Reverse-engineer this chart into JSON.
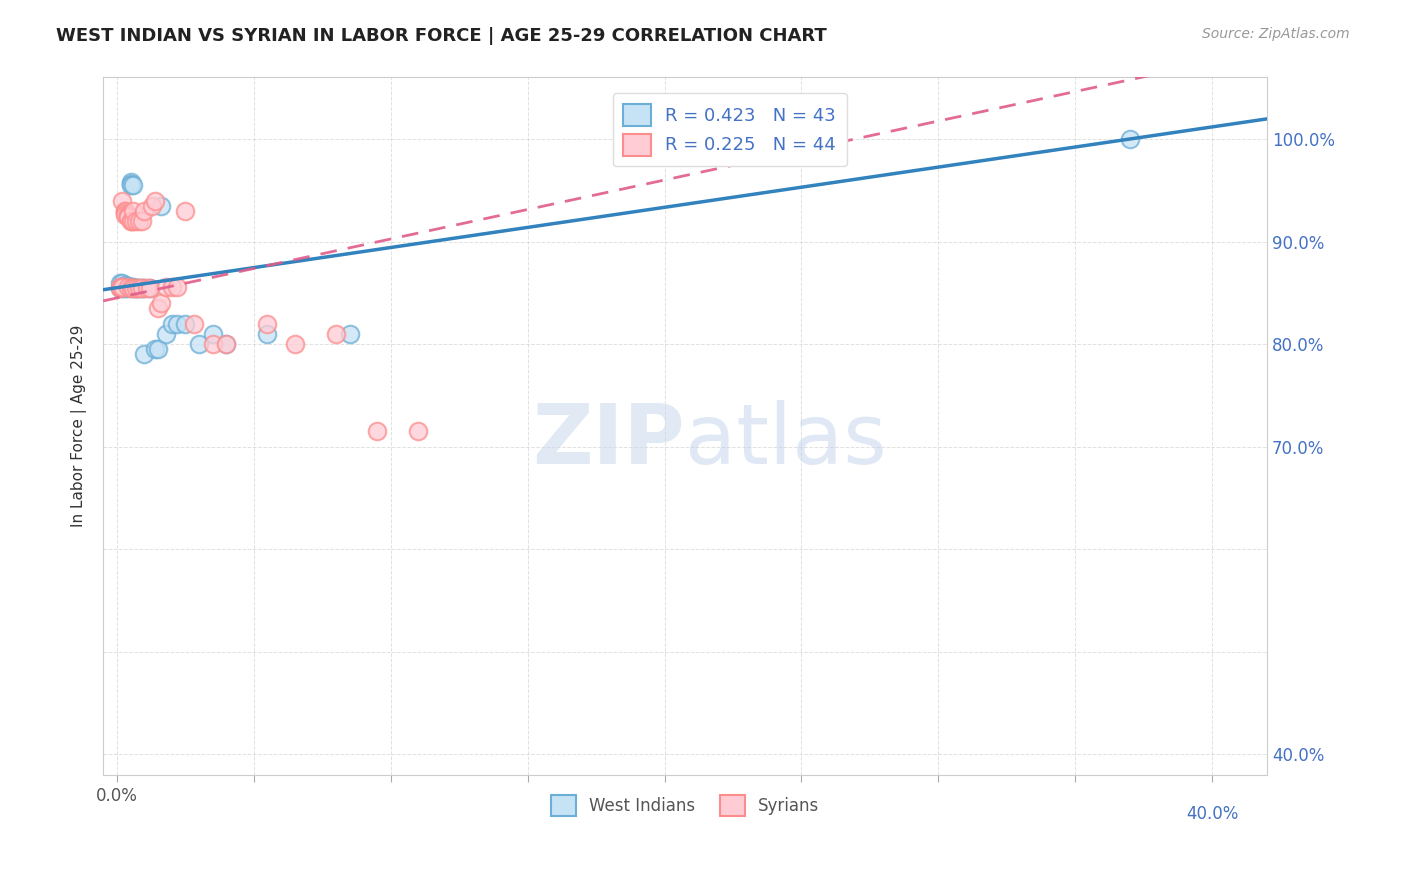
{
  "title": "WEST INDIAN VS SYRIAN IN LABOR FORCE | AGE 25-29 CORRELATION CHART",
  "source_text": "Source: ZipAtlas.com",
  "ylabel": "In Labor Force | Age 25-29",
  "xlim": [
    -0.005,
    0.42
  ],
  "ylim": [
    0.38,
    1.06
  ],
  "west_indian_R": 0.423,
  "west_indian_N": 43,
  "syrian_R": 0.225,
  "syrian_N": 44,
  "blue_color": "#6BAED6",
  "pink_color": "#FC8D8D",
  "blue_line_color": "#3182BD",
  "pink_line_color": "#E05C8A",
  "grid_color": "#CCCCCC",
  "background_color": "#FFFFFF",
  "west_indian_x": [
    0.001,
    0.001,
    0.002,
    0.002,
    0.002,
    0.003,
    0.003,
    0.003,
    0.003,
    0.003,
    0.003,
    0.004,
    0.004,
    0.004,
    0.004,
    0.004,
    0.005,
    0.005,
    0.005,
    0.005,
    0.006,
    0.006,
    0.006,
    0.007,
    0.007,
    0.008,
    0.009,
    0.01,
    0.01,
    0.012,
    0.014,
    0.015,
    0.016,
    0.018,
    0.02,
    0.022,
    0.025,
    0.03,
    0.035,
    0.04,
    0.055,
    0.085,
    0.37
  ],
  "west_indian_y": [
    0.855,
    0.86,
    0.855,
    0.86,
    0.856,
    0.856,
    0.856,
    0.856,
    0.857,
    0.858,
    0.855,
    0.856,
    0.855,
    0.857,
    0.856,
    0.856,
    0.958,
    0.856,
    0.956,
    0.955,
    0.856,
    0.955,
    0.855,
    0.855,
    0.855,
    0.855,
    0.855,
    0.855,
    0.79,
    0.855,
    0.795,
    0.795,
    0.935,
    0.81,
    0.82,
    0.82,
    0.82,
    0.8,
    0.81,
    0.8,
    0.81,
    0.81,
    1.0
  ],
  "syrian_x": [
    0.001,
    0.001,
    0.002,
    0.002,
    0.002,
    0.003,
    0.003,
    0.003,
    0.003,
    0.004,
    0.004,
    0.004,
    0.004,
    0.005,
    0.005,
    0.005,
    0.006,
    0.006,
    0.006,
    0.007,
    0.007,
    0.008,
    0.008,
    0.009,
    0.009,
    0.01,
    0.011,
    0.012,
    0.013,
    0.014,
    0.015,
    0.016,
    0.018,
    0.02,
    0.022,
    0.025,
    0.028,
    0.035,
    0.04,
    0.055,
    0.065,
    0.08,
    0.095,
    0.11
  ],
  "syrian_y": [
    0.855,
    0.856,
    0.856,
    0.94,
    0.856,
    0.93,
    0.93,
    0.928,
    0.926,
    0.926,
    0.925,
    0.924,
    0.856,
    0.92,
    0.855,
    0.92,
    0.855,
    0.92,
    0.93,
    0.92,
    0.855,
    0.855,
    0.92,
    0.855,
    0.92,
    0.93,
    0.855,
    0.855,
    0.935,
    0.94,
    0.835,
    0.84,
    0.856,
    0.856,
    0.856,
    0.93,
    0.82,
    0.8,
    0.8,
    0.82,
    0.8,
    0.81,
    0.715,
    0.715
  ],
  "watermark_zip": "ZIP",
  "watermark_atlas": "atlas",
  "ytick_vals": [
    0.4,
    0.5,
    0.6,
    0.7,
    0.8,
    0.9,
    1.0
  ],
  "ytick_right_labels": [
    "40.0%",
    "",
    "",
    "70.0%",
    "80.0%",
    "90.0%",
    "100.0%"
  ],
  "xtick_vals": [
    0.0,
    0.05,
    0.1,
    0.15,
    0.2,
    0.25,
    0.3,
    0.35,
    0.4
  ],
  "xtick_left_label": "0.0%",
  "xtick_right_label": "40.0%"
}
